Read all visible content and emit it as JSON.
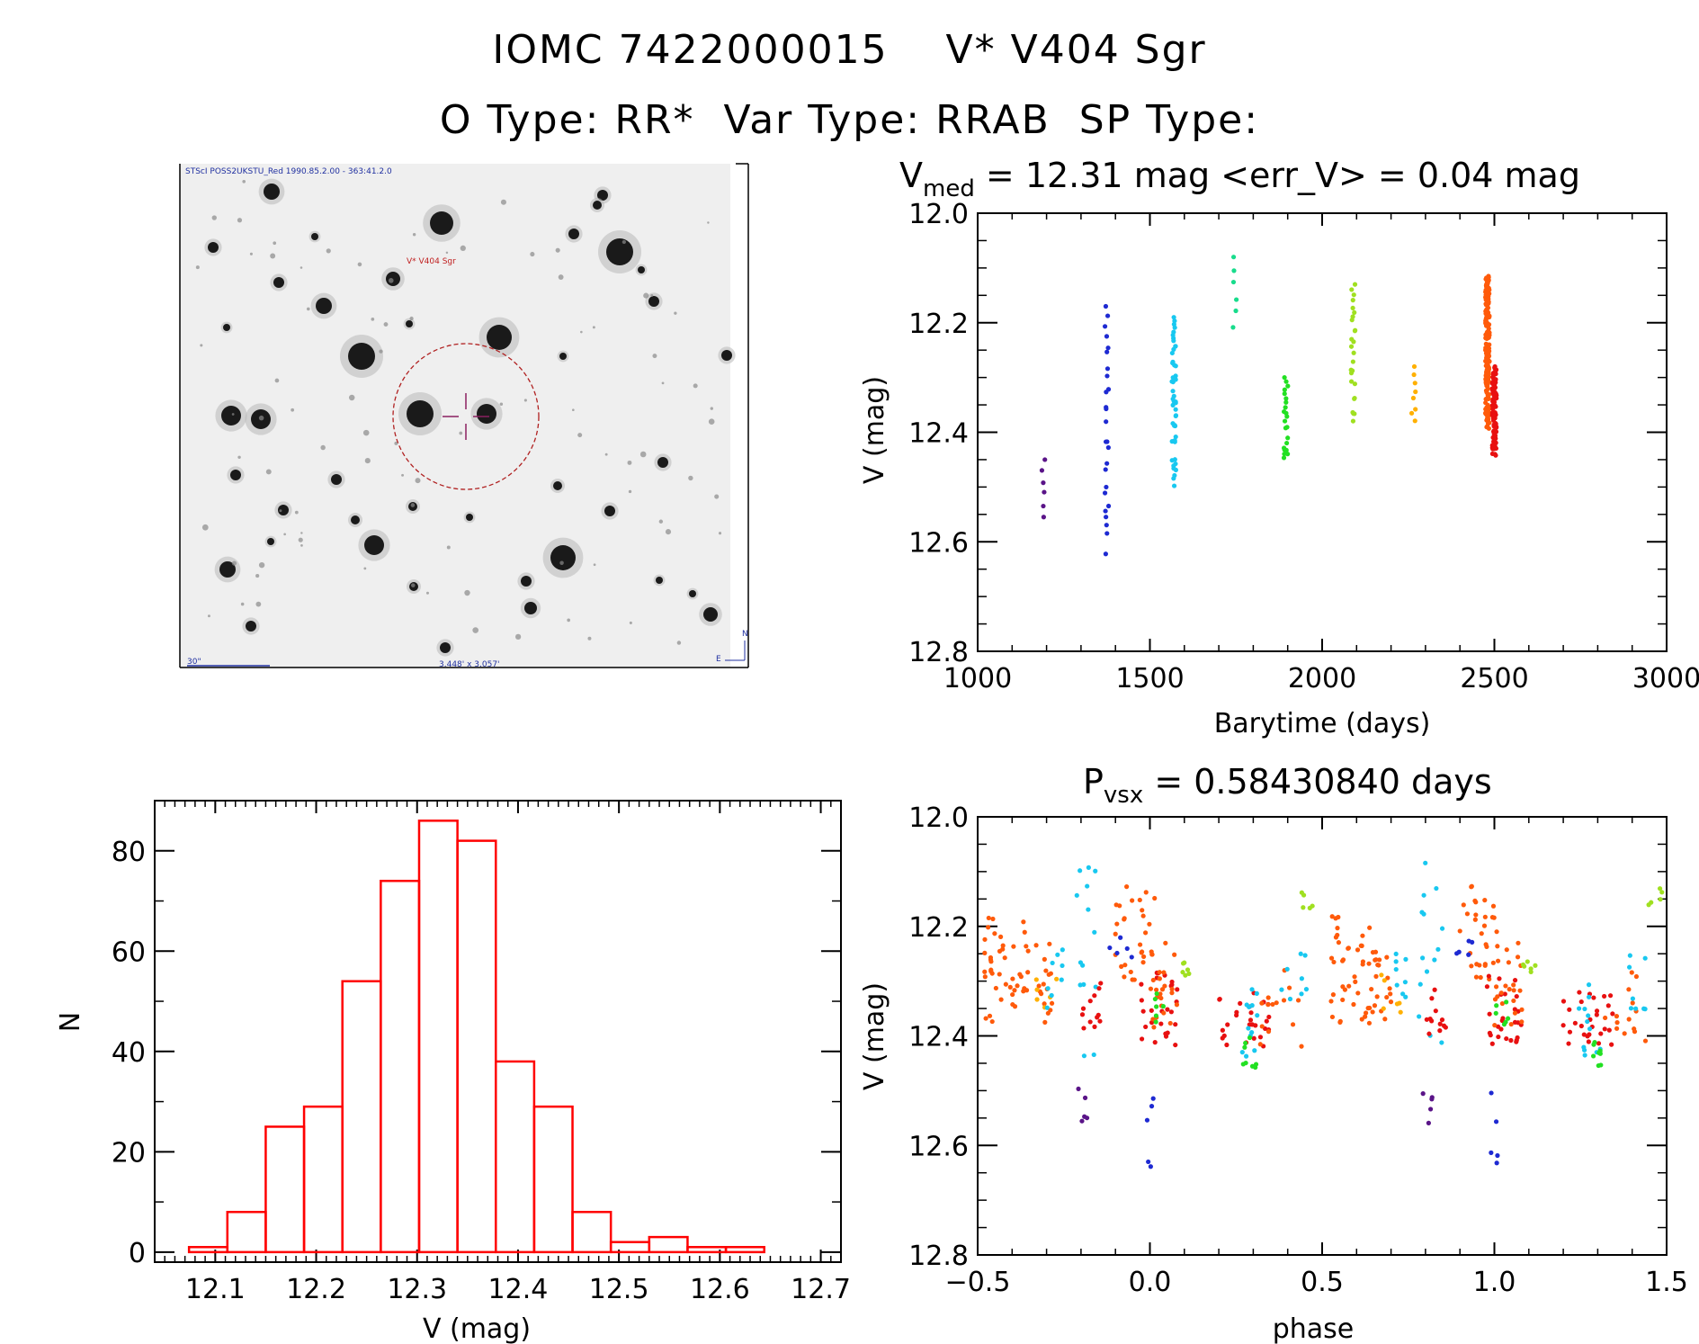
{
  "header": {
    "title_line1": "IOMC 7422000015    V* V404 Sgr",
    "title_line2": "O Type: RR*  Var Type: RRAB  SP Type:"
  },
  "finder": {
    "header_text": "STScI POSS2UKSTU_Red 1990.85.2.00 - 363:41.2.0",
    "target_label": "V* V404 Sgr",
    "scale_label": "30\"",
    "fov_label": "3.448' x 3.057'",
    "compass_n": "N",
    "compass_e": "E"
  },
  "chart_data": [
    {
      "id": "lightcurve",
      "type": "scatter",
      "title_main": "V",
      "title_sub": "med",
      "title_rest": " = 12.31 mag <err_V> = 0.04 mag",
      "xlabel": "Barytime (days)",
      "ylabel": "V (mag)",
      "xlim": [
        1000,
        3000
      ],
      "ylim": [
        12.0,
        12.8
      ],
      "y_inverted": true,
      "xticks": [
        1000,
        1500,
        2000,
        2500,
        3000
      ],
      "xtick_labels": [
        "1000",
        "1500",
        "2000",
        "2500",
        "3000"
      ],
      "yticks": [
        12.0,
        12.2,
        12.4,
        12.6,
        12.8
      ],
      "ytick_labels": [
        "12.0",
        "12.2",
        "12.4",
        "12.6",
        "12.8"
      ],
      "groups": [
        {
          "t": 1190,
          "vmin": 12.45,
          "vmax": 12.56,
          "n": 6,
          "color": "#5a1488"
        },
        {
          "t": 1375,
          "vmin": 12.17,
          "vmax": 12.65,
          "n": 26,
          "color": "#1e2ad2"
        },
        {
          "t": 1570,
          "vmin": 12.19,
          "vmax": 12.51,
          "n": 48,
          "color": "#18c8f0"
        },
        {
          "t": 1745,
          "vmin": 12.08,
          "vmax": 12.21,
          "n": 6,
          "color": "#18dc8c"
        },
        {
          "t": 1895,
          "vmin": 12.3,
          "vmax": 12.47,
          "n": 22,
          "color": "#22e022"
        },
        {
          "t": 2090,
          "vmin": 12.13,
          "vmax": 12.4,
          "n": 26,
          "color": "#a0e020"
        },
        {
          "t": 2265,
          "vmin": 12.28,
          "vmax": 12.39,
          "n": 8,
          "color": "#ffb000"
        },
        {
          "t": 2480,
          "vmin": 12.115,
          "vmax": 12.41,
          "n": 160,
          "color": "#ff5a0a"
        },
        {
          "t": 2500,
          "vmin": 12.28,
          "vmax": 12.455,
          "n": 90,
          "color": "#e81010"
        }
      ]
    },
    {
      "id": "histogram",
      "type": "bar",
      "xlabel": "V (mag)",
      "ylabel": "N",
      "xlim": [
        12.04,
        12.72
      ],
      "ylim": [
        -2,
        90
      ],
      "xticks": [
        12.1,
        12.2,
        12.3,
        12.4,
        12.5,
        12.6,
        12.7
      ],
      "xtick_labels": [
        "12.1",
        "12.2",
        "12.3",
        "12.4",
        "12.5",
        "12.6",
        "12.7"
      ],
      "yticks": [
        0,
        20,
        40,
        60,
        80
      ],
      "ytick_labels": [
        "0",
        "20",
        "40",
        "60",
        "80"
      ],
      "bin_width": 0.038,
      "bin_left_edges": [
        12.074,
        12.112,
        12.15,
        12.188,
        12.226,
        12.264,
        12.302,
        12.34,
        12.378,
        12.416,
        12.454,
        12.492,
        12.53,
        12.568,
        12.606
      ],
      "values": [
        1,
        8,
        25,
        29,
        54,
        74,
        86,
        82,
        38,
        29,
        8,
        2,
        3,
        1,
        1
      ],
      "color": "#ff0000"
    },
    {
      "id": "phased",
      "type": "scatter",
      "title_main": "P",
      "title_sub": "vsx",
      "title_rest": " = 0.58430840 days",
      "xlabel": "phase",
      "ylabel": "V (mag)",
      "xlim": [
        -0.5,
        1.5
      ],
      "ylim": [
        12.0,
        12.8
      ],
      "y_inverted": true,
      "xticks": [
        -0.5,
        0.0,
        0.5,
        1.0,
        1.5
      ],
      "xtick_labels": [
        "−0.5",
        "0.0",
        "0.5",
        "1.0",
        "1.5"
      ],
      "yticks": [
        12.0,
        12.2,
        12.4,
        12.6,
        12.8
      ],
      "ytick_labels": [
        "12.0",
        "12.2",
        "12.4",
        "12.6",
        "12.8"
      ],
      "groups": [
        {
          "phase": [
            -0.48,
            -0.36
          ],
          "vmin": 12.18,
          "vmax": 12.38,
          "n": 40,
          "color": "#ff5a0a"
        },
        {
          "phase": [
            -0.36,
            -0.28
          ],
          "vmin": 12.23,
          "vmax": 12.38,
          "n": 20,
          "color": "#ff5a0a"
        },
        {
          "phase": [
            -0.33,
            -0.27
          ],
          "vmin": 12.28,
          "vmax": 12.36,
          "n": 6,
          "color": "#ffb000"
        },
        {
          "phase": [
            -0.3,
            -0.25
          ],
          "vmin": 12.24,
          "vmax": 12.37,
          "n": 8,
          "color": "#18c8f0"
        },
        {
          "phase": [
            -0.22,
            -0.15
          ],
          "vmin": 12.08,
          "vmax": 12.45,
          "n": 14,
          "color": "#18c8f0"
        },
        {
          "phase": [
            -0.2,
            -0.14
          ],
          "vmin": 12.3,
          "vmax": 12.4,
          "n": 12,
          "color": "#e81010"
        },
        {
          "phase": [
            -0.21,
            -0.18
          ],
          "vmin": 12.49,
          "vmax": 12.56,
          "n": 5,
          "color": "#5a1488"
        },
        {
          "phase": [
            -0.1,
            0.02
          ],
          "vmin": 12.12,
          "vmax": 12.3,
          "n": 30,
          "color": "#ff5a0a"
        },
        {
          "phase": [
            -0.12,
            -0.05
          ],
          "vmin": 12.22,
          "vmax": 12.26,
          "n": 5,
          "color": "#1e2ad2"
        },
        {
          "phase": [
            -0.03,
            0.08
          ],
          "vmin": 12.28,
          "vmax": 12.42,
          "n": 26,
          "color": "#e81010"
        },
        {
          "phase": [
            0.0,
            0.08
          ],
          "vmin": 12.23,
          "vmax": 12.4,
          "n": 22,
          "color": "#ff5a0a"
        },
        {
          "phase": [
            0.0,
            0.04
          ],
          "vmin": 12.32,
          "vmax": 12.38,
          "n": 6,
          "color": "#22e022"
        },
        {
          "phase": [
            -0.01,
            0.01
          ],
          "vmin": 12.48,
          "vmax": 12.65,
          "n": 5,
          "color": "#1e2ad2"
        },
        {
          "phase": [
            0.08,
            0.12
          ],
          "vmin": 12.26,
          "vmax": 12.29,
          "n": 6,
          "color": "#a0e020"
        },
        {
          "phase": [
            0.2,
            0.36
          ],
          "vmin": 12.32,
          "vmax": 12.42,
          "n": 28,
          "color": "#e81010"
        },
        {
          "phase": [
            0.24,
            0.32
          ],
          "vmin": 12.3,
          "vmax": 12.46,
          "n": 12,
          "color": "#18c8f0"
        },
        {
          "phase": [
            0.27,
            0.31
          ],
          "vmin": 12.4,
          "vmax": 12.46,
          "n": 8,
          "color": "#22e022"
        },
        {
          "phase": [
            0.32,
            0.44
          ],
          "vmin": 12.28,
          "vmax": 12.42,
          "n": 14,
          "color": "#ff5a0a"
        },
        {
          "phase": [
            0.38,
            0.46
          ],
          "vmin": 12.25,
          "vmax": 12.36,
          "n": 8,
          "color": "#18c8f0"
        },
        {
          "phase": [
            0.44,
            0.49
          ],
          "vmin": 12.13,
          "vmax": 12.17,
          "n": 5,
          "color": "#a0e020"
        },
        {
          "phase": [
            0.52,
            0.64
          ],
          "vmin": 12.18,
          "vmax": 12.38,
          "n": 40,
          "color": "#ff5a0a"
        },
        {
          "phase": [
            0.64,
            0.72
          ],
          "vmin": 12.23,
          "vmax": 12.38,
          "n": 20,
          "color": "#ff5a0a"
        },
        {
          "phase": [
            0.67,
            0.73
          ],
          "vmin": 12.28,
          "vmax": 12.36,
          "n": 6,
          "color": "#ffb000"
        },
        {
          "phase": [
            0.7,
            0.75
          ],
          "vmin": 12.24,
          "vmax": 12.37,
          "n": 8,
          "color": "#18c8f0"
        },
        {
          "phase": [
            0.78,
            0.85
          ],
          "vmin": 12.08,
          "vmax": 12.45,
          "n": 14,
          "color": "#18c8f0"
        },
        {
          "phase": [
            0.8,
            0.86
          ],
          "vmin": 12.3,
          "vmax": 12.4,
          "n": 12,
          "color": "#e81010"
        },
        {
          "phase": [
            0.79,
            0.82
          ],
          "vmin": 12.49,
          "vmax": 12.56,
          "n": 5,
          "color": "#5a1488"
        },
        {
          "phase": [
            0.9,
            1.02
          ],
          "vmin": 12.12,
          "vmax": 12.3,
          "n": 30,
          "color": "#ff5a0a"
        },
        {
          "phase": [
            0.88,
            0.95
          ],
          "vmin": 12.22,
          "vmax": 12.26,
          "n": 5,
          "color": "#1e2ad2"
        },
        {
          "phase": [
            0.97,
            1.08
          ],
          "vmin": 12.28,
          "vmax": 12.42,
          "n": 26,
          "color": "#e81010"
        },
        {
          "phase": [
            1.0,
            1.08
          ],
          "vmin": 12.23,
          "vmax": 12.4,
          "n": 22,
          "color": "#ff5a0a"
        },
        {
          "phase": [
            1.0,
            1.04
          ],
          "vmin": 12.32,
          "vmax": 12.38,
          "n": 6,
          "color": "#22e022"
        },
        {
          "phase": [
            0.99,
            1.01
          ],
          "vmin": 12.48,
          "vmax": 12.65,
          "n": 5,
          "color": "#1e2ad2"
        },
        {
          "phase": [
            1.08,
            1.12
          ],
          "vmin": 12.26,
          "vmax": 12.29,
          "n": 6,
          "color": "#a0e020"
        },
        {
          "phase": [
            1.2,
            1.36
          ],
          "vmin": 12.32,
          "vmax": 12.42,
          "n": 28,
          "color": "#e81010"
        },
        {
          "phase": [
            1.24,
            1.32
          ],
          "vmin": 12.3,
          "vmax": 12.46,
          "n": 12,
          "color": "#18c8f0"
        },
        {
          "phase": [
            1.27,
            1.31
          ],
          "vmin": 12.4,
          "vmax": 12.46,
          "n": 8,
          "color": "#22e022"
        },
        {
          "phase": [
            1.32,
            1.44
          ],
          "vmin": 12.28,
          "vmax": 12.42,
          "n": 14,
          "color": "#ff5a0a"
        },
        {
          "phase": [
            1.38,
            1.46
          ],
          "vmin": 12.25,
          "vmax": 12.36,
          "n": 8,
          "color": "#18c8f0"
        },
        {
          "phase": [
            1.44,
            1.49
          ],
          "vmin": 12.13,
          "vmax": 12.17,
          "n": 5,
          "color": "#a0e020"
        }
      ]
    }
  ]
}
